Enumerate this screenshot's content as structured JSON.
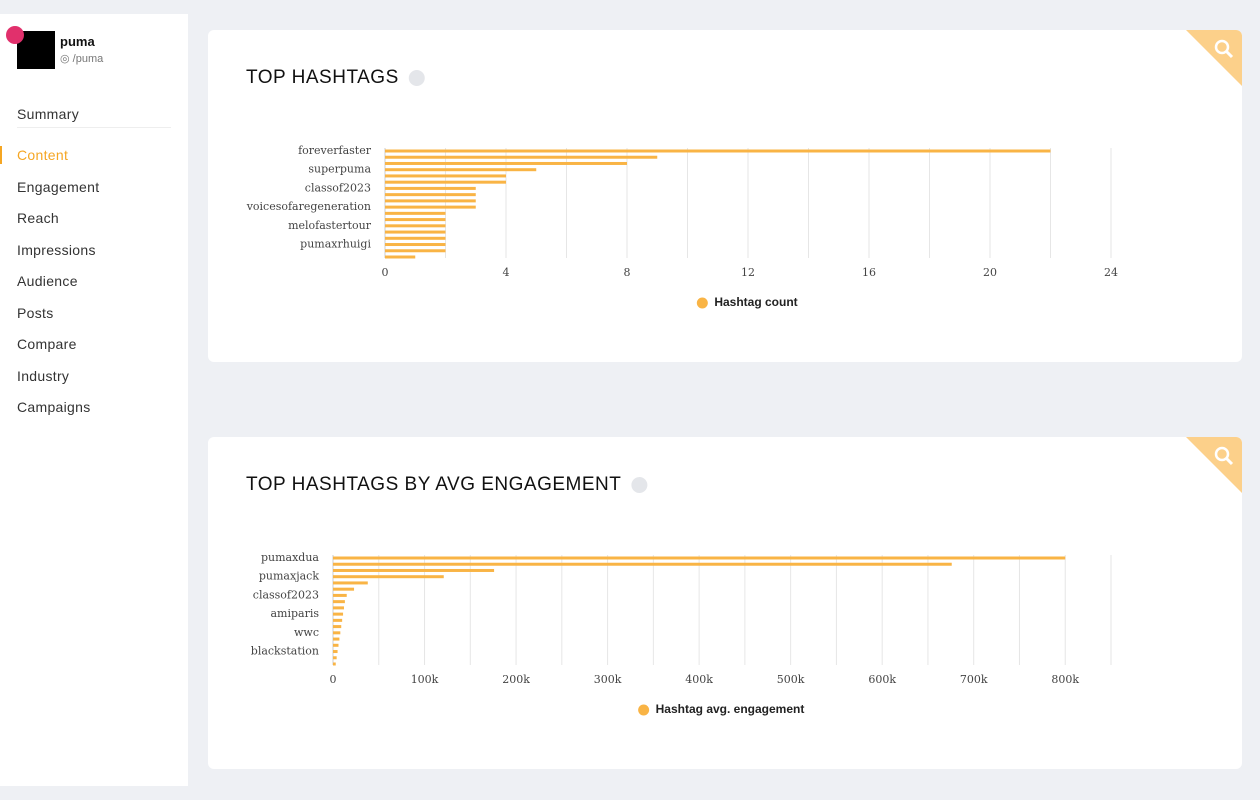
{
  "sidebar": {
    "profile": {
      "name": "puma",
      "handle": "/puma"
    },
    "nav": [
      "Summary",
      "Content",
      "Engagement",
      "Reach",
      "Impressions",
      "Audience",
      "Posts",
      "Compare",
      "Industry",
      "Campaigns"
    ],
    "active": "Content"
  },
  "chart_data": [
    {
      "type": "bar",
      "orientation": "horizontal",
      "title": "TOP HASHTAGS",
      "categories": [
        "foreverfaster",
        null,
        null,
        "superpuma",
        null,
        null,
        "classof2023",
        null,
        null,
        "voicesofaregeneration",
        null,
        null,
        "melofastertour",
        null,
        null,
        "pumaxrhuigi",
        null,
        null
      ],
      "series": [
        {
          "name": "Hashtag count",
          "color": "#f9b445",
          "values": [
            22,
            9,
            8,
            5,
            4,
            4,
            3,
            3,
            3,
            3,
            2,
            2,
            2,
            2,
            2,
            2,
            2,
            1
          ]
        }
      ],
      "xlim": [
        0,
        24
      ],
      "xticks": [
        0,
        4,
        8,
        12,
        16,
        20,
        24
      ],
      "grid_xticks": [
        2,
        6,
        10,
        14,
        18,
        22
      ],
      "grid": true,
      "legend": "bottom"
    },
    {
      "type": "bar",
      "orientation": "horizontal",
      "title": "TOP HASHTAGS BY AVG ENGAGEMENT",
      "categories": [
        "pumaxdua",
        null,
        null,
        "pumaxjack",
        null,
        null,
        "classof2023",
        null,
        null,
        "amiparis",
        null,
        null,
        "wwc",
        null,
        null,
        "blackstation",
        null,
        null
      ],
      "series": [
        {
          "name": "Hashtag avg. engagement",
          "color": "#f9b445",
          "values": [
            800000,
            676000,
            176000,
            121000,
            38000,
            23000,
            15000,
            13000,
            12000,
            11000,
            10000,
            9000,
            8000,
            7000,
            6000,
            5000,
            4000,
            3000
          ]
        }
      ],
      "xlim": [
        0,
        850000
      ],
      "xticks": [
        0,
        {
          "value": 100000,
          "label": "100k"
        },
        {
          "value": 200000,
          "label": "200k"
        },
        {
          "value": 300000,
          "label": "300k"
        },
        {
          "value": 400000,
          "label": "400k"
        },
        {
          "value": 500000,
          "label": "500k"
        },
        {
          "value": 600000,
          "label": "600k"
        },
        {
          "value": 700000,
          "label": "700k"
        },
        {
          "value": 800000,
          "label": "800k"
        }
      ],
      "grid_xticks": [
        50000,
        150000,
        250000,
        350000,
        450000,
        550000,
        650000,
        750000,
        850000
      ],
      "grid": true,
      "legend": "bottom"
    }
  ]
}
